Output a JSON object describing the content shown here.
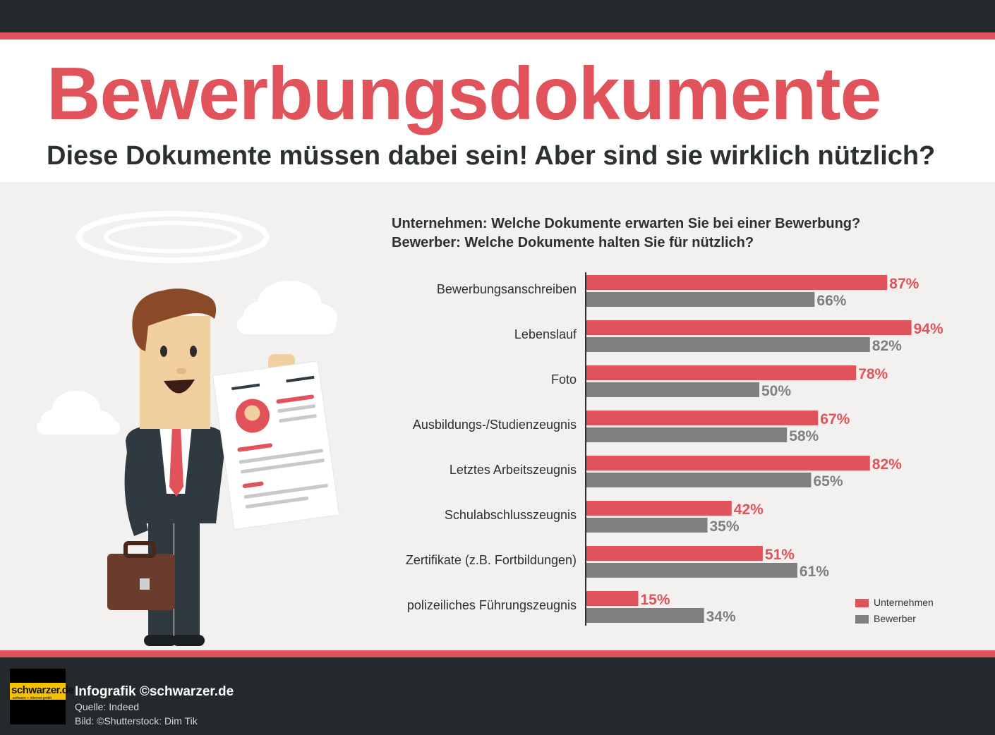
{
  "header": {
    "title": "Bewerbungsdokumente",
    "subtitle": "Diese Dokumente müssen dabei sein! Aber sind sie wirklich nützlich?"
  },
  "questions": {
    "q1": "Unternehmen: Welche Dokumente erwarten Sie bei einer Bewerbung?",
    "q2": "Bewerber: Welche Dokumente halten Sie für nützlich?"
  },
  "colors": {
    "accent": "#e0535a",
    "secondary": "#7f7f7f",
    "dark": "#24292c"
  },
  "chart_data": {
    "type": "bar",
    "orientation": "horizontal",
    "unit": "%",
    "categories": [
      "Bewerbungsanschreiben",
      "Lebenslauf",
      "Foto",
      "Ausbildungs-/Studienzeugnis",
      "Letztes Arbeitszeugnis",
      "Schulabschlusszeugnis",
      "Zertifikate (z.B. Fortbildungen)",
      "polizeiliches Führungszeugnis"
    ],
    "series": [
      {
        "name": "Unternehmen",
        "color": "#e0535a",
        "values": [
          87,
          94,
          78,
          67,
          82,
          42,
          51,
          15
        ]
      },
      {
        "name": "Bewerber",
        "color": "#7f7f7f",
        "values": [
          66,
          82,
          50,
          58,
          65,
          35,
          61,
          34
        ]
      }
    ],
    "xlim": [
      0,
      100
    ],
    "legend": "bottom-right",
    "grid": false
  },
  "footer": {
    "logo_text": "schwarzer.de",
    "logo_sub": "software + internet gmbh",
    "credit": "Infografik ©schwarzer.de",
    "source": "Quelle: Indeed",
    "image_credit": "Bild: ©Shutterstock: Dim Tik"
  }
}
